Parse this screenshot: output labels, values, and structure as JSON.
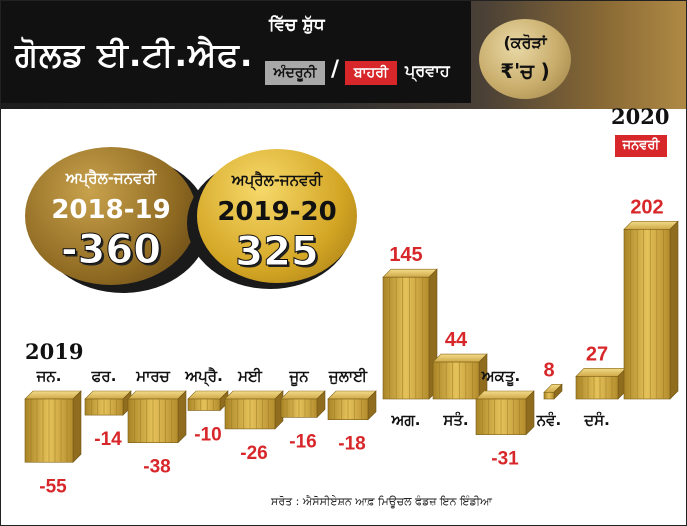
{
  "header": {
    "title": "ਗੋਲਡ ਈ.ਟੀ.ਐਫ.",
    "subtitle": "ਵਿੱਚ ਸ਼ੁੱਧ",
    "legend_internal": "ਅੰਦਰੂਨੀ",
    "legend_slash": "/",
    "legend_external": "ਬਾਹਰੀ",
    "legend_flow": "ਪ੍ਰਵਾਹ",
    "unit_line1": "(ਕਰੋੜਾਂ",
    "unit_line2": "₹'ਚ )",
    "colors": {
      "internal": "#a8a8a8",
      "external": "#d8272a",
      "gold": "#d4a625"
    }
  },
  "totals": [
    {
      "period": "ਅਪ੍ਰੈਲ-ਜਨਵਰੀ",
      "year": "2018-19",
      "value": "-360"
    },
    {
      "period": "ਅਪ੍ਰੈਲ-ਜਨਵਰੀ",
      "year": "2019-20",
      "value": "325"
    }
  ],
  "year_2019": "2019",
  "year_2020": "2020",
  "jan_badge": "ਜਨਵਰੀ",
  "source": "ਸਰੋਤ : ਐਸੋਸੀਏਸ਼ਨ ਆਫ਼ ਮਿਊਚਲ ਫੰਡਜ਼ ਇਨ ਇੰਡੀਆ",
  "chart_data": {
    "type": "bar",
    "title": "ਗੋਲਡ ਈ.ਟੀ.ਐਫ. ਵਿੱਚ ਸ਼ੁੱਧ ਅੰਦਰੂਨੀ / ਬਾਹਰੀ ਪ੍ਰਵਾਹ",
    "ylabel": "",
    "xlabel": "",
    "categories": [
      "ਜਨ.",
      "ਫਰ.",
      "ਮਾਰਚ",
      "ਅਪ੍ਰੈ.",
      "ਮਈ",
      "ਜੂਨ",
      "ਜੁਲਾਈ",
      "ਅਗ.",
      "ਸਤੰ.",
      "ਅਕਤੂ.",
      "ਨਵੰ.",
      "ਦਸੰ.",
      "ਜਨਵਰੀ"
    ],
    "values": [
      -55,
      -14,
      -38,
      -10,
      -26,
      -16,
      -18,
      145,
      44,
      -31,
      8,
      27,
      202
    ],
    "value_labels": [
      "-55",
      "-14",
      "-38",
      "-10",
      "-26",
      "-16",
      "-18",
      "145",
      "44",
      "-31",
      "8",
      "27",
      "202"
    ],
    "ylim": [
      -60,
      210
    ],
    "grid": false
  }
}
